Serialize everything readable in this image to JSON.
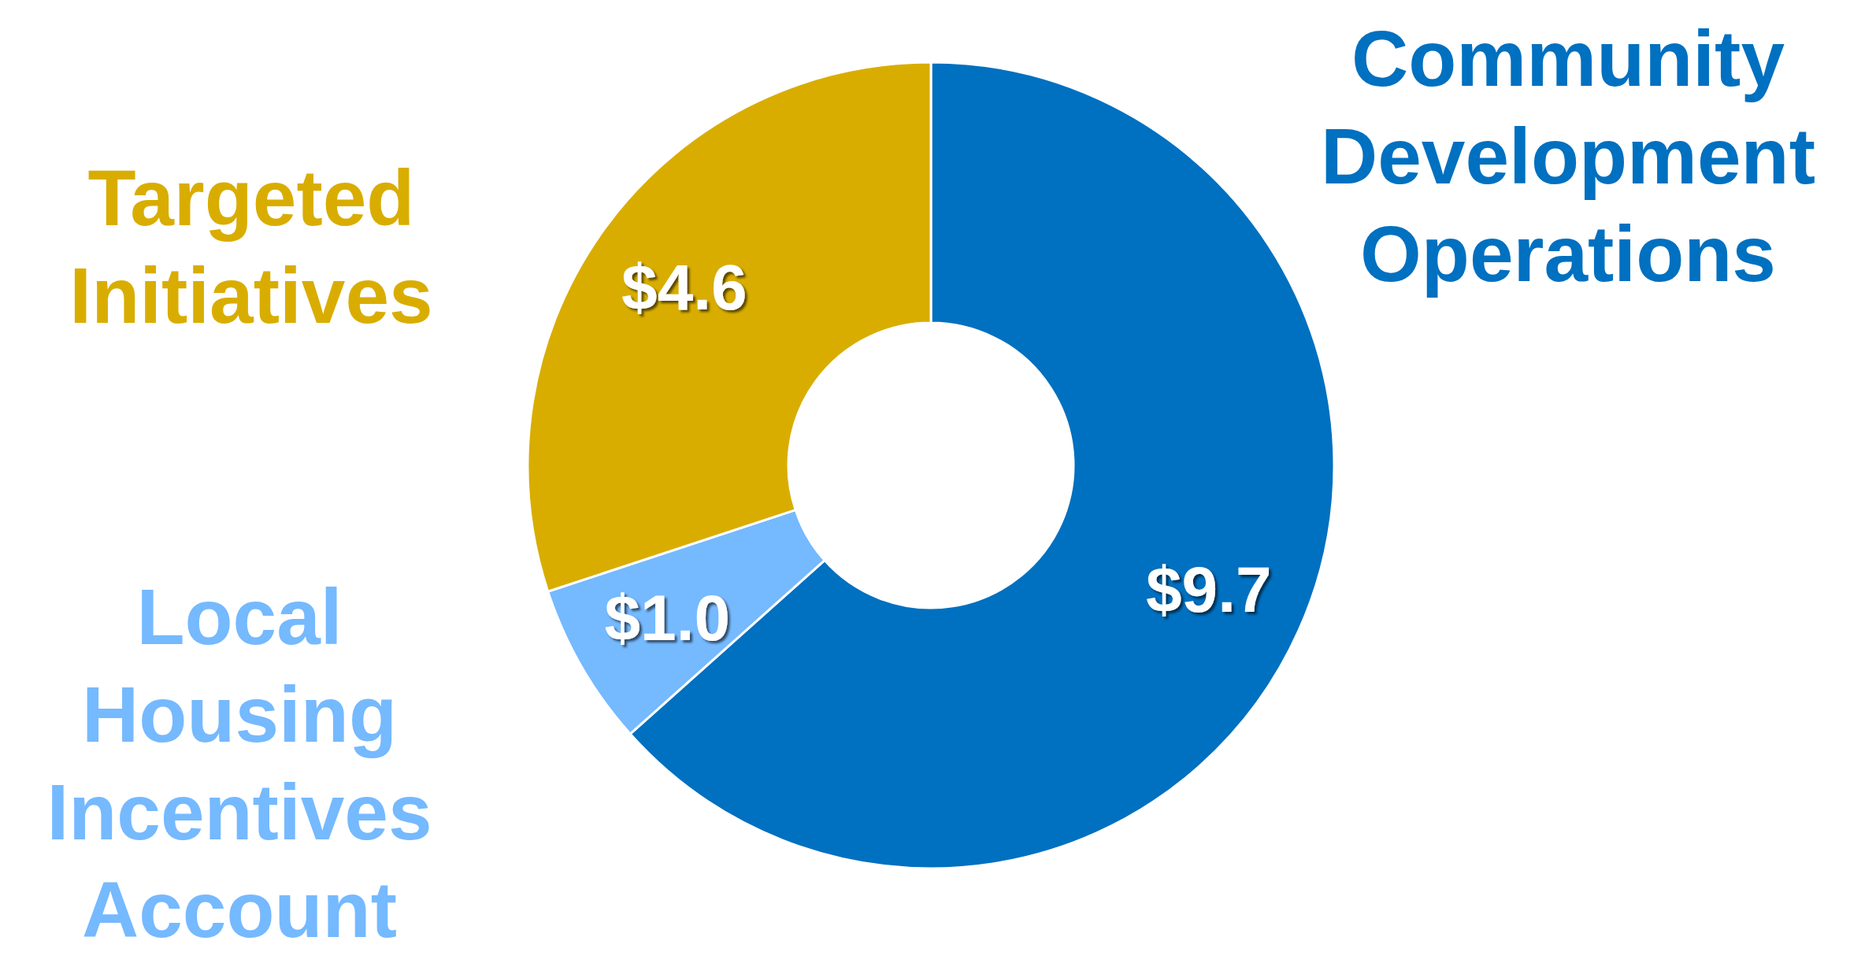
{
  "chart_data": {
    "type": "donut",
    "categories": [
      "Community Development Operations",
      "Local Housing Incentives Account",
      "Targeted Initiatives"
    ],
    "values": [
      9.7,
      1.0,
      4.6
    ],
    "colors": [
      "#0070c0",
      "#75b9ff",
      "#d9ad00"
    ],
    "value_labels": [
      "$9.7",
      "$1.0",
      "$4.6"
    ]
  }
}
